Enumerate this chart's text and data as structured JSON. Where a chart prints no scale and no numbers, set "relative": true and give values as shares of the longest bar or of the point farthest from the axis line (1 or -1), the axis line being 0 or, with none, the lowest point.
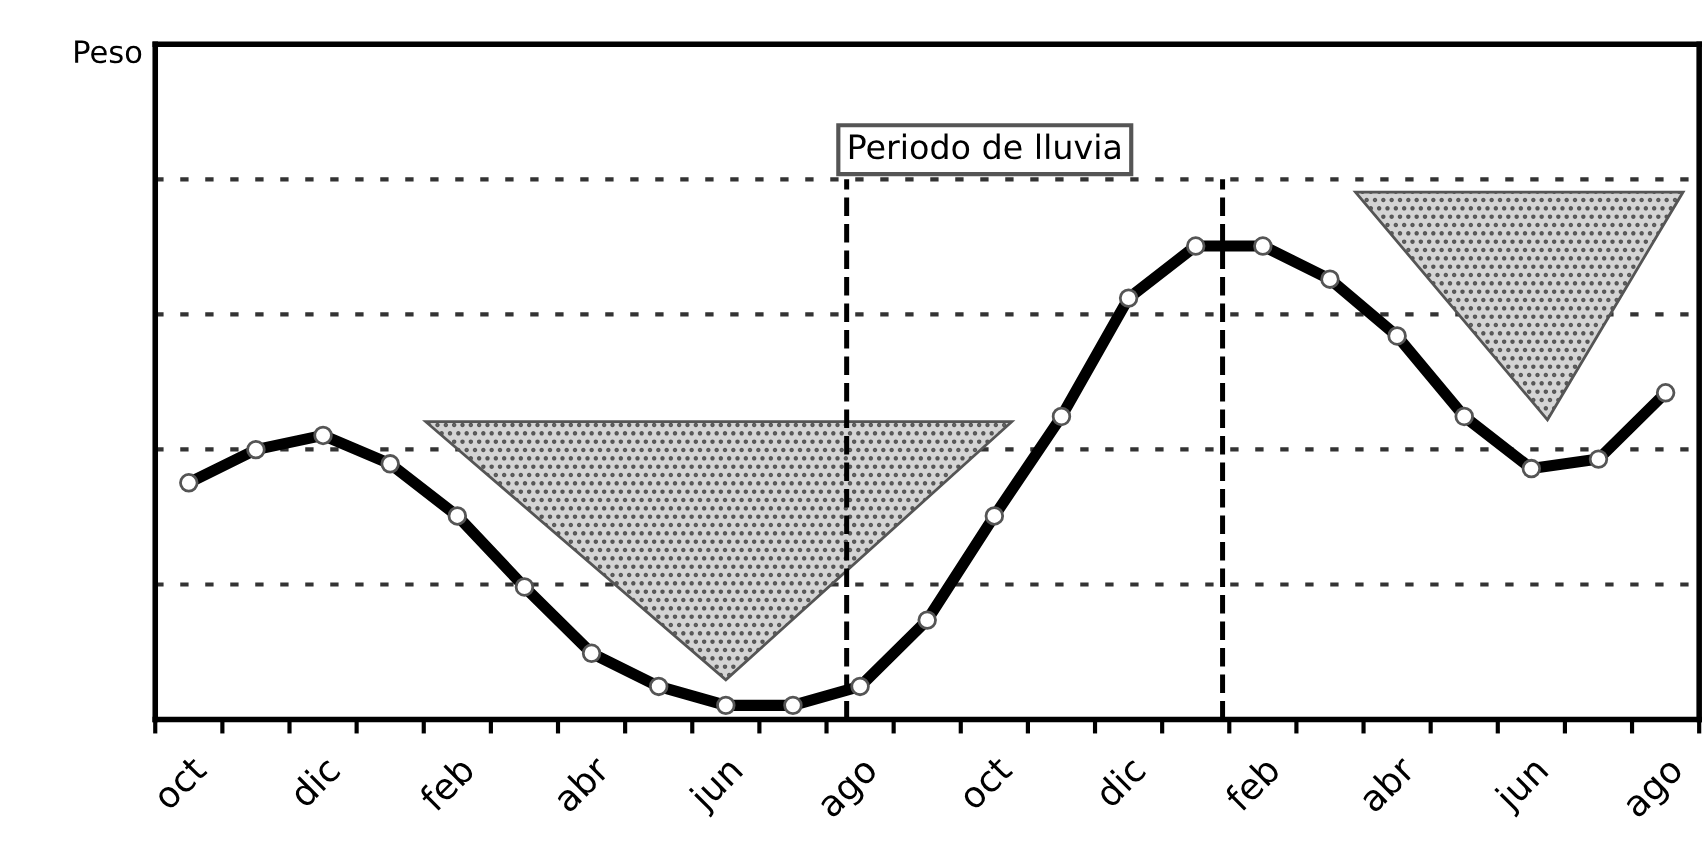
{
  "chart_data": {
    "type": "line",
    "relative": true,
    "categories": [
      "oct",
      null,
      "dic",
      null,
      "feb",
      null,
      "abr",
      null,
      "jun",
      null,
      "ago",
      null,
      "oct",
      null,
      "dic",
      null,
      "feb",
      null,
      "abr",
      null,
      "jun",
      null,
      "ago"
    ],
    "series": [
      {
        "color": "#000000",
        "values": [
          0.5,
          0.57,
          0.6,
          0.54,
          0.43,
          0.28,
          0.14,
          0.07,
          0.03,
          0.03,
          0.07,
          0.21,
          0.43,
          0.64,
          0.89,
          1.0,
          1.0,
          0.93,
          0.81,
          0.64,
          0.53,
          0.55,
          0.69
        ]
      }
    ],
    "annotations": [
      "Periodo de lluvia",
      "Peso"
    ],
    "grid": "y",
    "marker": "circle",
    "line_style": "solid",
    "tick_labels": "x"
  }
}
